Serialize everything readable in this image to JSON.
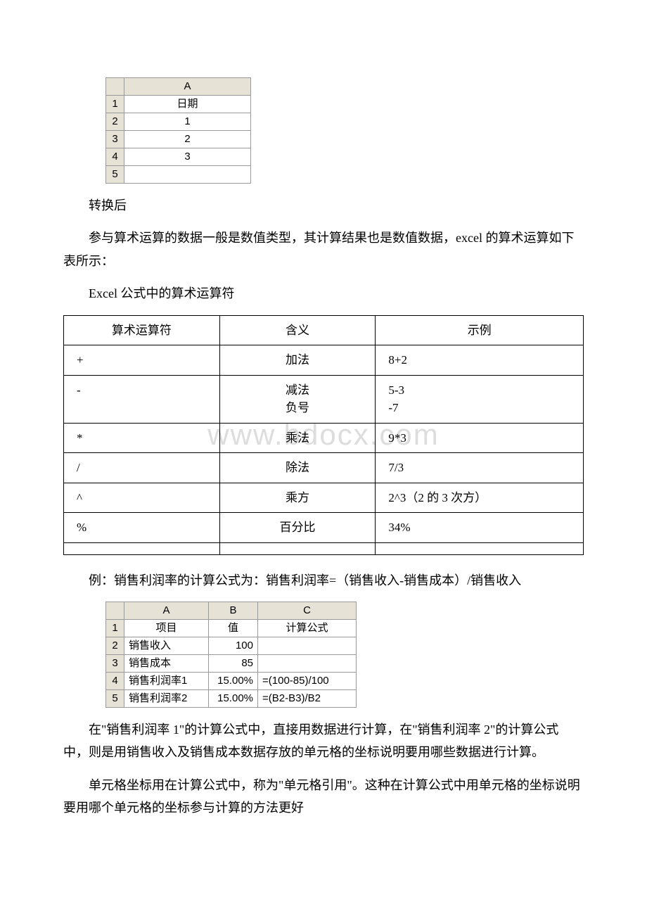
{
  "excel1": {
    "col_header": "A",
    "rows": [
      {
        "n": "1",
        "a": "日期"
      },
      {
        "n": "2",
        "a": "1"
      },
      {
        "n": "3",
        "a": "2"
      },
      {
        "n": "4",
        "a": "3"
      },
      {
        "n": "5",
        "a": ""
      }
    ]
  },
  "text": {
    "after_convert": "转换后",
    "intro": "参与算术运算的数据一般是数值类型，其计算结果也是数值数据，excel 的算术运算如下表所示：",
    "table_title": "Excel 公式中的算术运算符",
    "example_intro": "例：销售利润率的计算公式为：销售利润率=（销售收入-销售成本）/销售收入",
    "explain1": "在\"销售利润率 1\"的计算公式中，直接用数据进行计算，在\"销售利润率 2\"的计算公式中，则是用销售收入及销售成本数据存放的单元格的坐标说明要用哪些数据进行计算。",
    "explain2": "单元格坐标用在计算公式中，称为\"单元格引用\"。这种在计算公式中用单元格的坐标说明要用哪个单元格的坐标参与计算的方法更好"
  },
  "op_table": {
    "header": {
      "c1": "算术运算符",
      "c2": "含义",
      "c3": "示例"
    },
    "rows": [
      {
        "c1": "+",
        "c2": "加法",
        "c3": "8+2"
      },
      {
        "c1": "-",
        "c2": "减法\n负号",
        "c3": "5-3\n-7"
      },
      {
        "c1": "*",
        "c2": "乘法",
        "c3": "9*3"
      },
      {
        "c1": "/",
        "c2": "除法",
        "c3": "7/3"
      },
      {
        "c1": "^",
        "c2": "乘方",
        "c3": "2^3（2 的 3 次方）"
      },
      {
        "c1": "%",
        "c2": "百分比",
        "c3": "34%"
      }
    ]
  },
  "excel2": {
    "col_headers": [
      "A",
      "B",
      "C"
    ],
    "row1": {
      "n": "1",
      "a": "项目",
      "b": "值",
      "c": "计算公式"
    },
    "rows": [
      {
        "n": "2",
        "a": "销售收入",
        "b": "100",
        "c": ""
      },
      {
        "n": "3",
        "a": "销售成本",
        "b": "85",
        "c": ""
      },
      {
        "n": "4",
        "a": "销售利润率1",
        "b": "15.00%",
        "c": "=(100-85)/100"
      },
      {
        "n": "5",
        "a": "销售利润率2",
        "b": "15.00%",
        "c": "=(B2-B3)/B2"
      }
    ]
  },
  "watermark": "www.bdocx.com",
  "styles": {
    "body_bg": "#ffffff",
    "text_color": "#000000",
    "excel_header_bg": "#e6e2d6",
    "excel_border": "#999999",
    "op_table_border": "#000000",
    "watermark_color": "#dddddd",
    "body_fontsize": 18,
    "excel_fontsize": 15,
    "op_fontsize": 17
  }
}
